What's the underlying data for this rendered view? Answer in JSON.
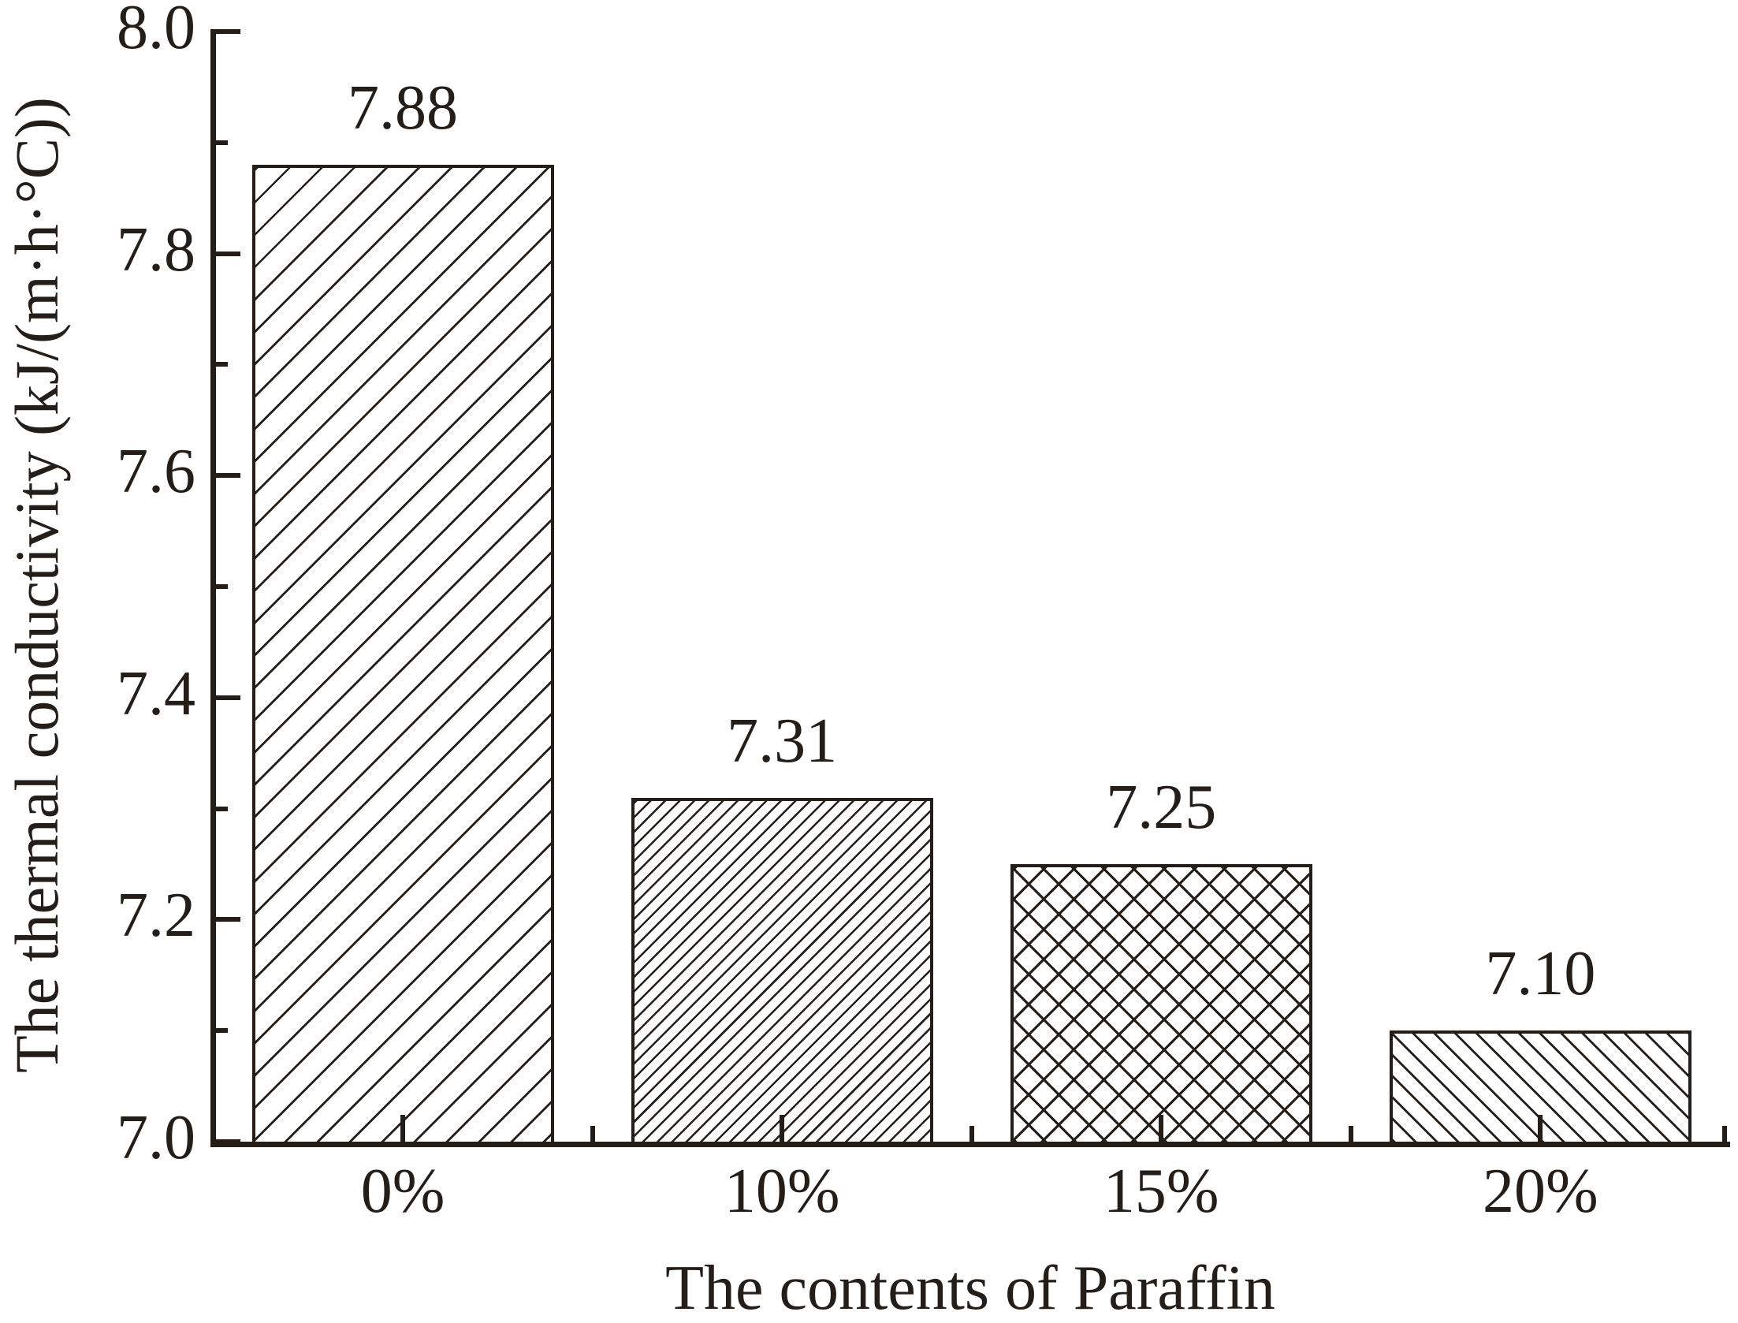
{
  "chart_data": {
    "type": "bar",
    "title": "",
    "xlabel": "The contents of Paraffin",
    "ylabel": "The thermal conductivity (kJ/(m·h·°C))",
    "categories": [
      "0%",
      "10%",
      "15%",
      "20%"
    ],
    "values": [
      7.88,
      7.31,
      7.25,
      7.1
    ],
    "value_labels": [
      "7.88",
      "7.31",
      "7.25",
      "7.10"
    ],
    "ylim": [
      7.0,
      8.0
    ],
    "y_major_ticks": [
      8.0,
      7.8,
      7.6,
      7.4,
      7.2,
      7.0
    ],
    "y_major_tick_labels": [
      "8.0",
      "7.8",
      "7.6",
      "7.4",
      "7.2",
      "7.0"
    ],
    "y_minor_ticks": [
      7.9,
      7.7,
      7.5,
      7.3,
      7.1
    ],
    "grid": false,
    "legend": null,
    "hatches": [
      "diagonal-forward-wide",
      "diagonal-forward-dense",
      "crosshatch",
      "diagonal-backward"
    ],
    "bar_fill": "#ffffff",
    "colors": {
      "ink": "#241d18",
      "background": "#ffffff"
    }
  }
}
